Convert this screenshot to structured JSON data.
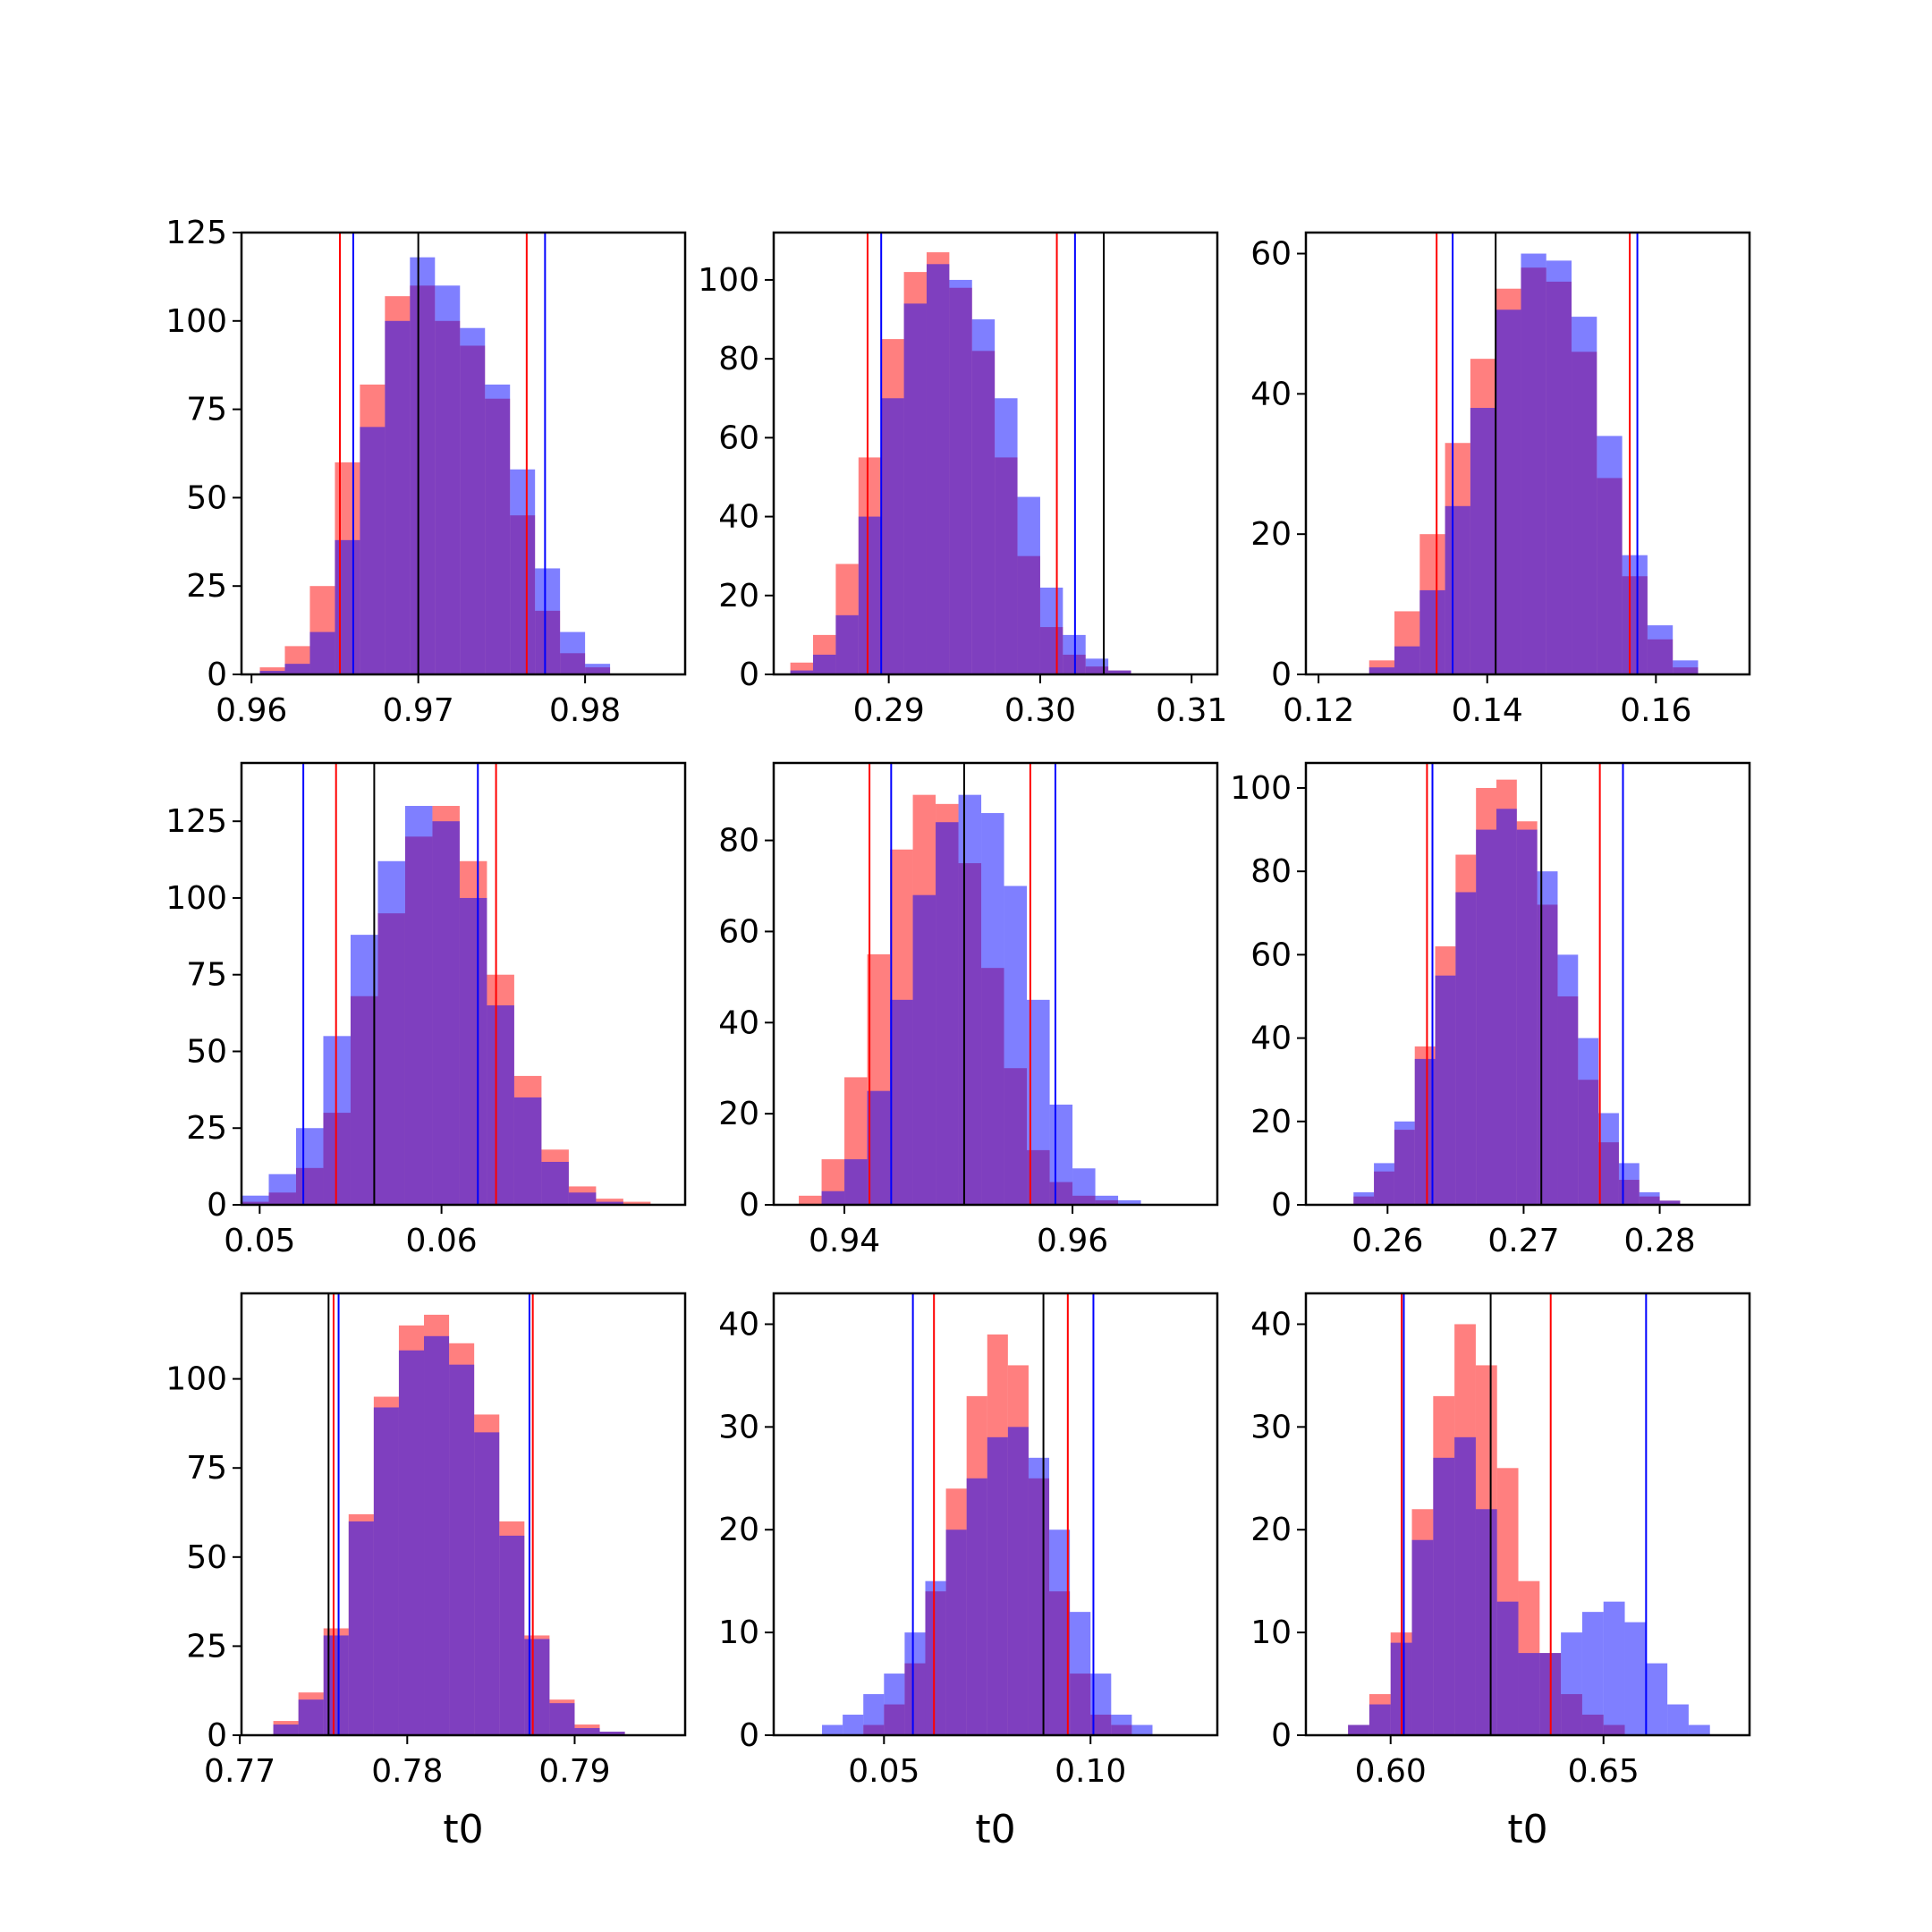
{
  "colors": {
    "red": "#ff0000",
    "blue": "#0000ff",
    "black": "#000000",
    "red_fill": "rgba(255,0,0,0.5)",
    "blue_fill": "rgba(0,0,255,0.5)"
  },
  "chart_data": [
    {
      "type": "bar",
      "subtype": "overlaid-histogram",
      "xlabel": "",
      "xlim": [
        0.9594,
        0.986
      ],
      "ylim": [
        0,
        125
      ],
      "xticks": [
        0.96,
        0.97,
        0.98
      ],
      "xtick_labels": [
        "0.96",
        "0.97",
        "0.98"
      ],
      "yticks": [
        0,
        25,
        50,
        75,
        100,
        125
      ],
      "ytick_labels": [
        "0",
        "25",
        "50",
        "75",
        "100",
        "125"
      ],
      "bins": [
        0.9605,
        0.962,
        0.9635,
        0.965,
        0.9665,
        0.968,
        0.9695,
        0.971,
        0.9725,
        0.974,
        0.9755,
        0.977,
        0.9785,
        0.98,
        0.9815
      ],
      "series": [
        {
          "color": "red",
          "counts": [
            2,
            8,
            25,
            60,
            82,
            107,
            110,
            100,
            93,
            78,
            45,
            18,
            6,
            2
          ]
        },
        {
          "color": "blue",
          "counts": [
            1,
            3,
            12,
            38,
            70,
            100,
            118,
            110,
            98,
            82,
            58,
            30,
            12,
            3
          ]
        }
      ],
      "vlines": [
        {
          "color": "red",
          "x": 0.9653
        },
        {
          "color": "red",
          "x": 0.9765
        },
        {
          "color": "blue",
          "x": 0.9661
        },
        {
          "color": "blue",
          "x": 0.9776
        },
        {
          "color": "black",
          "x": 0.97
        }
      ]
    },
    {
      "type": "bar",
      "subtype": "overlaid-histogram",
      "xlabel": "",
      "xlim": [
        0.2824,
        0.3117
      ],
      "ylim": [
        0,
        112
      ],
      "xticks": [
        0.29,
        0.3,
        0.31
      ],
      "xtick_labels": [
        "0.29",
        "0.30",
        "0.31"
      ],
      "yticks": [
        0,
        20,
        40,
        60,
        80,
        100
      ],
      "ytick_labels": [
        "0",
        "20",
        "40",
        "60",
        "80",
        "100"
      ],
      "bins": [
        0.2835,
        0.285,
        0.2865,
        0.288,
        0.2895,
        0.291,
        0.2925,
        0.294,
        0.2955,
        0.297,
        0.2985,
        0.3,
        0.3015,
        0.303,
        0.3045,
        0.306
      ],
      "series": [
        {
          "color": "red",
          "counts": [
            3,
            10,
            28,
            55,
            85,
            102,
            107,
            98,
            82,
            55,
            30,
            12,
            5,
            2,
            1
          ]
        },
        {
          "color": "blue",
          "counts": [
            1,
            5,
            15,
            40,
            70,
            94,
            104,
            100,
            90,
            70,
            45,
            22,
            10,
            4,
            1
          ]
        }
      ],
      "vlines": [
        {
          "color": "red",
          "x": 0.2886
        },
        {
          "color": "red",
          "x": 0.3011
        },
        {
          "color": "blue",
          "x": 0.2895
        },
        {
          "color": "blue",
          "x": 0.3023
        },
        {
          "color": "black",
          "x": 0.3042
        }
      ]
    },
    {
      "type": "bar",
      "subtype": "overlaid-histogram",
      "xlabel": "",
      "xlim": [
        0.1185,
        0.1711
      ],
      "ylim": [
        0,
        63
      ],
      "xticks": [
        0.12,
        0.14,
        0.16
      ],
      "xtick_labels": [
        "0.12",
        "0.14",
        "0.16"
      ],
      "yticks": [
        0,
        20,
        40,
        60
      ],
      "ytick_labels": [
        "0",
        "20",
        "40",
        "60"
      ],
      "bins": [
        0.126,
        0.129,
        0.132,
        0.135,
        0.138,
        0.141,
        0.144,
        0.147,
        0.15,
        0.153,
        0.156,
        0.159,
        0.162,
        0.165
      ],
      "series": [
        {
          "color": "red",
          "counts": [
            2,
            9,
            20,
            33,
            45,
            55,
            58,
            56,
            46,
            28,
            14,
            5,
            1
          ]
        },
        {
          "color": "blue",
          "counts": [
            1,
            4,
            12,
            24,
            38,
            52,
            60,
            59,
            51,
            34,
            17,
            7,
            2
          ]
        }
      ],
      "vlines": [
        {
          "color": "red",
          "x": 0.134
        },
        {
          "color": "red",
          "x": 0.1569
        },
        {
          "color": "blue",
          "x": 0.1359
        },
        {
          "color": "blue",
          "x": 0.1578
        },
        {
          "color": "black",
          "x": 0.141
        }
      ]
    },
    {
      "type": "bar",
      "subtype": "overlaid-histogram",
      "xlabel": "",
      "xlim": [
        0.049,
        0.0734
      ],
      "ylim": [
        0,
        144
      ],
      "xticks": [
        0.05,
        0.06
      ],
      "xtick_labels": [
        "0.05",
        "0.06"
      ],
      "yticks": [
        0,
        25,
        50,
        75,
        100,
        125
      ],
      "ytick_labels": [
        "0",
        "25",
        "50",
        "75",
        "100",
        "125"
      ],
      "bins": [
        0.049,
        0.0505,
        0.052,
        0.0535,
        0.055,
        0.0565,
        0.058,
        0.0595,
        0.061,
        0.0625,
        0.064,
        0.0655,
        0.067,
        0.0685,
        0.07,
        0.0715
      ],
      "series": [
        {
          "color": "red",
          "counts": [
            1,
            4,
            12,
            30,
            68,
            95,
            120,
            130,
            112,
            75,
            42,
            18,
            6,
            2,
            1
          ]
        },
        {
          "color": "blue",
          "counts": [
            3,
            10,
            25,
            55,
            88,
            112,
            130,
            125,
            100,
            65,
            35,
            14,
            4,
            1,
            0
          ]
        }
      ],
      "vlines": [
        {
          "color": "red",
          "x": 0.0542
        },
        {
          "color": "red",
          "x": 0.063
        },
        {
          "color": "blue",
          "x": 0.0524
        },
        {
          "color": "blue",
          "x": 0.062
        },
        {
          "color": "black",
          "x": 0.0563
        }
      ]
    },
    {
      "type": "bar",
      "subtype": "overlaid-histogram",
      "xlabel": "",
      "xlim": [
        0.9338,
        0.9727
      ],
      "ylim": [
        0,
        97
      ],
      "xticks": [
        0.94,
        0.96
      ],
      "xtick_labels": [
        "0.94",
        "0.96"
      ],
      "yticks": [
        0,
        20,
        40,
        60,
        80
      ],
      "ytick_labels": [
        "0",
        "20",
        "40",
        "60",
        "80"
      ],
      "bins": [
        0.936,
        0.938,
        0.94,
        0.942,
        0.944,
        0.946,
        0.948,
        0.95,
        0.952,
        0.954,
        0.956,
        0.958,
        0.96,
        0.962,
        0.964,
        0.966
      ],
      "series": [
        {
          "color": "red",
          "counts": [
            2,
            10,
            28,
            55,
            78,
            90,
            88,
            75,
            52,
            30,
            12,
            5,
            2,
            1,
            0
          ]
        },
        {
          "color": "blue",
          "counts": [
            0,
            3,
            10,
            25,
            45,
            68,
            84,
            90,
            86,
            70,
            45,
            22,
            8,
            2,
            1
          ]
        }
      ],
      "vlines": [
        {
          "color": "red",
          "x": 0.9422
        },
        {
          "color": "red",
          "x": 0.9563
        },
        {
          "color": "blue",
          "x": 0.9441
        },
        {
          "color": "blue",
          "x": 0.9585
        },
        {
          "color": "black",
          "x": 0.9505
        }
      ]
    },
    {
      "type": "bar",
      "subtype": "overlaid-histogram",
      "xlabel": "",
      "xlim": [
        0.254,
        0.2866
      ],
      "ylim": [
        0,
        106
      ],
      "xticks": [
        0.26,
        0.27,
        0.28
      ],
      "xtick_labels": [
        "0.26",
        "0.27",
        "0.28"
      ],
      "yticks": [
        0,
        20,
        40,
        60,
        80,
        100
      ],
      "ytick_labels": [
        "0",
        "20",
        "40",
        "60",
        "80",
        "100"
      ],
      "bins": [
        0.2575,
        0.259,
        0.2605,
        0.262,
        0.2635,
        0.265,
        0.2665,
        0.268,
        0.2695,
        0.271,
        0.2725,
        0.274,
        0.2755,
        0.277,
        0.2785,
        0.28,
        0.2815,
        0.283
      ],
      "series": [
        {
          "color": "red",
          "counts": [
            2,
            8,
            18,
            38,
            62,
            84,
            100,
            102,
            92,
            72,
            50,
            30,
            15,
            6,
            2,
            1,
            0
          ]
        },
        {
          "color": "blue",
          "counts": [
            3,
            10,
            20,
            35,
            55,
            75,
            90,
            95,
            90,
            80,
            60,
            40,
            22,
            10,
            3,
            1,
            0
          ]
        }
      ],
      "vlines": [
        {
          "color": "red",
          "x": 0.2629
        },
        {
          "color": "red",
          "x": 0.2756
        },
        {
          "color": "blue",
          "x": 0.2633
        },
        {
          "color": "blue",
          "x": 0.2773
        },
        {
          "color": "black",
          "x": 0.2713
        }
      ]
    },
    {
      "type": "bar",
      "subtype": "overlaid-histogram",
      "xlabel": "t0",
      "xlim": [
        0.7701,
        0.7966
      ],
      "ylim": [
        0,
        124
      ],
      "xticks": [
        0.77,
        0.78,
        0.79
      ],
      "xtick_labels": [
        "0.77",
        "0.78",
        "0.79"
      ],
      "yticks": [
        0,
        25,
        50,
        75,
        100
      ],
      "ytick_labels": [
        "0",
        "25",
        "50",
        "75",
        "100"
      ],
      "bins": [
        0.772,
        0.7735,
        0.775,
        0.7765,
        0.778,
        0.7795,
        0.781,
        0.7825,
        0.784,
        0.7855,
        0.787,
        0.7885,
        0.79,
        0.7915,
        0.793
      ],
      "series": [
        {
          "color": "red",
          "counts": [
            4,
            12,
            30,
            62,
            95,
            115,
            118,
            110,
            90,
            60,
            28,
            10,
            3,
            1
          ]
        },
        {
          "color": "blue",
          "counts": [
            3,
            10,
            28,
            60,
            92,
            108,
            112,
            104,
            85,
            56,
            27,
            9,
            2,
            1
          ]
        }
      ],
      "vlines": [
        {
          "color": "red",
          "x": 0.7756
        },
        {
          "color": "red",
          "x": 0.7875
        },
        {
          "color": "blue",
          "x": 0.7759
        },
        {
          "color": "blue",
          "x": 0.7873
        },
        {
          "color": "black",
          "x": 0.7753
        }
      ]
    },
    {
      "type": "bar",
      "subtype": "overlaid-histogram",
      "xlabel": "t0",
      "xlim": [
        0.0233,
        0.1307
      ],
      "ylim": [
        0,
        43
      ],
      "xticks": [
        0.05,
        0.1
      ],
      "xtick_labels": [
        "0.05",
        "0.10"
      ],
      "yticks": [
        0,
        10,
        20,
        30,
        40
      ],
      "ytick_labels": [
        "0",
        "10",
        "20",
        "30",
        "40"
      ],
      "bins": [
        0.035,
        0.04,
        0.045,
        0.05,
        0.055,
        0.06,
        0.065,
        0.07,
        0.075,
        0.08,
        0.085,
        0.09,
        0.095,
        0.1,
        0.105,
        0.11,
        0.115
      ],
      "series": [
        {
          "color": "red",
          "counts": [
            0,
            0,
            1,
            3,
            7,
            14,
            24,
            33,
            39,
            36,
            25,
            14,
            6,
            2,
            1,
            0
          ]
        },
        {
          "color": "blue",
          "counts": [
            1,
            2,
            4,
            6,
            10,
            15,
            20,
            25,
            29,
            30,
            27,
            20,
            12,
            6,
            2,
            1
          ]
        }
      ],
      "vlines": [
        {
          "color": "red",
          "x": 0.0621
        },
        {
          "color": "red",
          "x": 0.0945
        },
        {
          "color": "blue",
          "x": 0.057
        },
        {
          "color": "blue",
          "x": 0.1007
        },
        {
          "color": "black",
          "x": 0.0886
        }
      ]
    },
    {
      "type": "bar",
      "subtype": "overlaid-histogram",
      "xlabel": "t0",
      "xlim": [
        0.5801,
        0.6843
      ],
      "ylim": [
        0,
        43
      ],
      "xticks": [
        0.6,
        0.65
      ],
      "xtick_labels": [
        "0.60",
        "0.65"
      ],
      "yticks": [
        0,
        10,
        20,
        30,
        40
      ],
      "ytick_labels": [
        "0",
        "10",
        "20",
        "30",
        "40"
      ],
      "bins": [
        0.59,
        0.595,
        0.6,
        0.605,
        0.61,
        0.615,
        0.62,
        0.625,
        0.63,
        0.635,
        0.64,
        0.645,
        0.65,
        0.655,
        0.66,
        0.665,
        0.67,
        0.675
      ],
      "series": [
        {
          "color": "red",
          "counts": [
            1,
            4,
            10,
            22,
            33,
            40,
            36,
            26,
            15,
            8,
            4,
            2,
            1,
            0,
            0,
            0,
            0
          ]
        },
        {
          "color": "blue",
          "counts": [
            1,
            3,
            9,
            19,
            27,
            29,
            22,
            13,
            8,
            8,
            10,
            12,
            13,
            11,
            7,
            3,
            1
          ]
        }
      ],
      "vlines": [
        {
          "color": "red",
          "x": 0.6026
        },
        {
          "color": "red",
          "x": 0.6376
        },
        {
          "color": "blue",
          "x": 0.6031
        },
        {
          "color": "blue",
          "x": 0.66
        },
        {
          "color": "black",
          "x": 0.6235
        }
      ]
    }
  ]
}
